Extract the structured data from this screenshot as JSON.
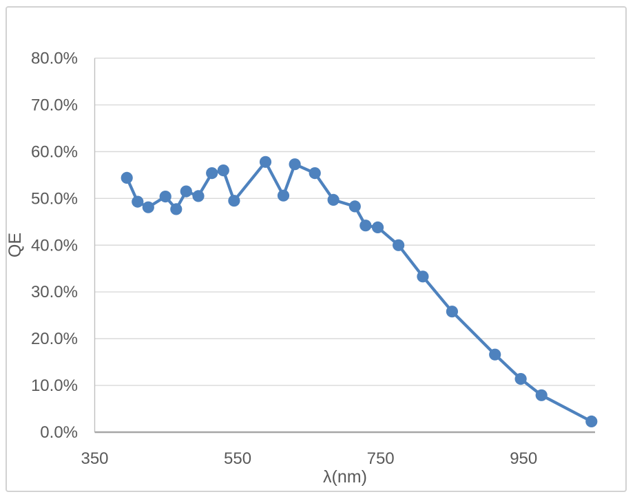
{
  "chart_data": {
    "type": "line",
    "title": "",
    "xlabel": "λ(nm)",
    "ylabel": "QE",
    "series": [
      {
        "name": "QE",
        "x_nm": [
          395,
          410,
          425,
          449,
          464,
          478,
          495,
          514,
          530,
          545,
          589,
          614,
          630,
          658,
          684,
          714,
          729,
          746,
          775,
          809,
          850,
          910,
          946,
          975,
          1045
        ],
        "qe_percent": [
          54.4,
          49.3,
          48.1,
          50.4,
          47.7,
          51.5,
          50.5,
          55.4,
          56.0,
          49.5,
          57.8,
          50.6,
          57.3,
          55.4,
          49.7,
          48.3,
          44.2,
          43.8,
          40.0,
          33.3,
          25.8,
          16.6,
          11.4,
          7.9,
          2.3
        ]
      }
    ],
    "xlim": [
      350,
      1050
    ],
    "ylim": [
      0,
      80
    ],
    "x_ticks": [
      350,
      550,
      750,
      950
    ],
    "y_tick_labels": [
      "0.0%",
      "10.0%",
      "20.0%",
      "30.0%",
      "40.0%",
      "50.0%",
      "60.0%",
      "70.0%",
      "80.0%"
    ],
    "grid": "horizontal-only",
    "legend_position": "none",
    "marker_style": "filled-circle",
    "colors": {
      "line": "#4e82be",
      "marker": "#4e82be",
      "gridline": "#d9d9d9",
      "y_axis_line": "#bfbfbf",
      "x_axis_line": "#a6a6a6",
      "tick_text": "#595959",
      "frame_border": "#d2d2d2",
      "background": "#ffffff"
    }
  }
}
